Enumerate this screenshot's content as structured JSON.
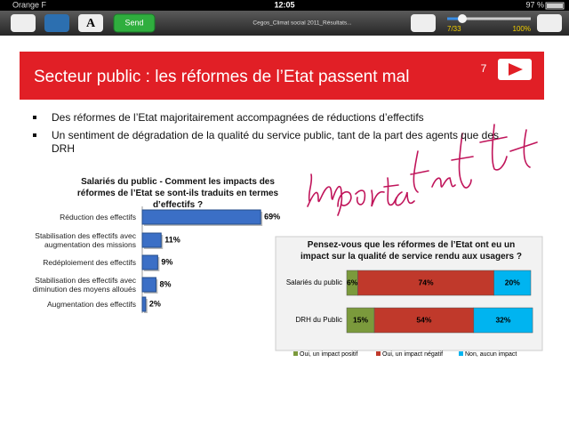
{
  "status_bar": {
    "carrier": "Orange F",
    "time": "12:05",
    "battery": "97 %"
  },
  "toolbar": {
    "send": "Send",
    "filename": "Cegos_Climat social 2011_Résultats...",
    "page": "7/33",
    "zoom": "100%"
  },
  "slide": {
    "title": "Secteur public : les réformes de l’Etat passent mal",
    "page_number": "7",
    "bullets": [
      "Des réformes de l’Etat majoritairement accompagnées de réductions d’effectifs",
      "Un sentiment de dégradation de la qualité du service public, tant de la part des agents que des DRH"
    ]
  },
  "chart_data": [
    {
      "type": "bar",
      "orientation": "horizontal",
      "title": "Salariés du public - Comment les impacts des réformes de l’Etat se sont-ils traduits en termes d’effectifs ?",
      "categories": [
        "Réduction des effectifs",
        "Stabilisation des effectifs avec augmentation des missions",
        "Redéploiement des effectifs",
        "Stabilisation des effectifs avec diminution des moyens alloués",
        "Augmentation des effectifs"
      ],
      "values": [
        69,
        11,
        9,
        8,
        2
      ],
      "value_labels": [
        "69%",
        "11%",
        "9%",
        "8%",
        "2%"
      ],
      "color": "#3b6fc6"
    },
    {
      "type": "stacked_bar",
      "orientation": "horizontal",
      "title": "Pensez-vous que les réformes de l’Etat ont eu un impact sur la qualité de service rendu aux usagers ?",
      "categories": [
        "Salariés du public",
        "DRH du Public"
      ],
      "series": [
        {
          "name": "Oui, un impact positif",
          "color": "#7b9a3c",
          "values": [
            6,
            15
          ],
          "value_labels": [
            "6%",
            "15%"
          ]
        },
        {
          "name": "Oui, un impact négatif",
          "color": "#c0392b",
          "values": [
            74,
            54
          ],
          "value_labels": [
            "74%",
            "54%"
          ]
        },
        {
          "name": "Non, aucun impact",
          "color": "#00b4f0",
          "values": [
            20,
            32
          ],
          "value_labels": [
            "20%",
            "32%"
          ]
        }
      ],
      "legend": "bottom"
    }
  ]
}
